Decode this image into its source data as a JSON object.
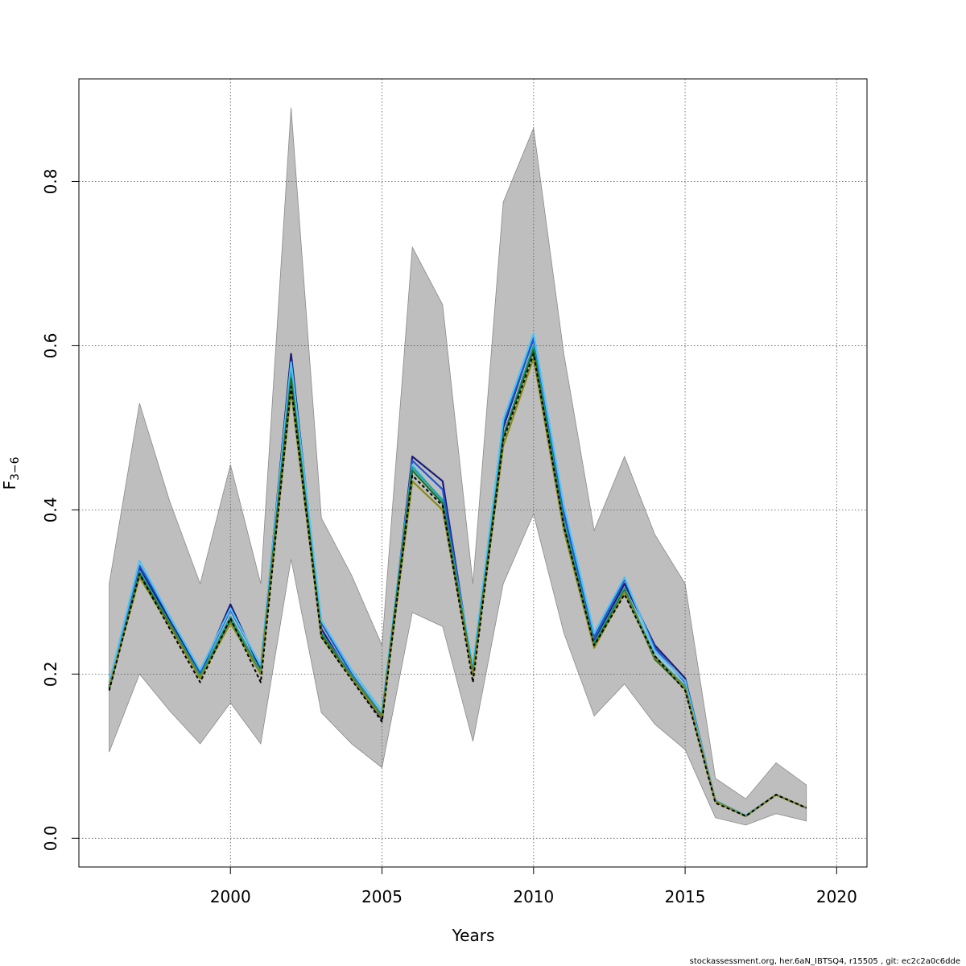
{
  "chart_data": {
    "type": "line",
    "xlabel": "Years",
    "ylabel": {
      "main": "F",
      "subscript": "3−6"
    },
    "xlim": [
      1995,
      2021
    ],
    "ylim": [
      -0.035,
      0.925
    ],
    "x_ticks": [
      2000,
      2005,
      2010,
      2015,
      2020
    ],
    "x_tick_labels": [
      "2000",
      "2005",
      "2010",
      "2015",
      "2020"
    ],
    "y_ticks": [
      0.0,
      0.2,
      0.4,
      0.6,
      0.8
    ],
    "y_tick_labels": [
      "0.0",
      "0.2",
      "0.4",
      "0.6",
      "0.8"
    ],
    "grid": true,
    "band": {
      "x": [
        1996,
        1997,
        1998,
        1999,
        2000,
        2001,
        2002,
        2003,
        2004,
        2005,
        2006,
        2007,
        2008,
        2009,
        2010,
        2011,
        2012,
        2013,
        2014,
        2015,
        2016,
        2017,
        2018,
        2019
      ],
      "upper": [
        0.31,
        0.53,
        0.41,
        0.31,
        0.455,
        0.31,
        0.89,
        0.39,
        0.32,
        0.235,
        0.72,
        0.65,
        0.31,
        0.775,
        0.865,
        0.59,
        0.375,
        0.465,
        0.37,
        0.31,
        0.073,
        0.048,
        0.092,
        0.065
      ],
      "lower": [
        0.105,
        0.2,
        0.155,
        0.115,
        0.165,
        0.115,
        0.34,
        0.153,
        0.115,
        0.086,
        0.275,
        0.258,
        0.118,
        0.31,
        0.395,
        0.25,
        0.149,
        0.188,
        0.139,
        0.108,
        0.025,
        0.016,
        0.03,
        0.021
      ],
      "color": "#bebebe"
    },
    "x": [
      1996,
      1997,
      1998,
      1999,
      2000,
      2001,
      2002,
      2003,
      2004,
      2005,
      2006,
      2007,
      2008,
      2009,
      2010,
      2011,
      2012,
      2013,
      2014,
      2015,
      2016,
      2017,
      2018,
      2019
    ],
    "series": [
      {
        "color": "#1b1b7a",
        "values": [
          0.185,
          0.33,
          0.265,
          0.2,
          0.285,
          0.205,
          0.59,
          0.255,
          0.195,
          0.145,
          0.465,
          0.435,
          0.2,
          0.5,
          0.61,
          0.4,
          0.24,
          0.31,
          0.235,
          0.195,
          0.045,
          0.027,
          0.053,
          0.037
        ]
      },
      {
        "color": "#2255cc",
        "values": [
          0.186,
          0.332,
          0.27,
          0.203,
          0.278,
          0.21,
          0.575,
          0.262,
          0.2,
          0.15,
          0.46,
          0.425,
          0.205,
          0.505,
          0.608,
          0.395,
          0.245,
          0.315,
          0.232,
          0.19,
          0.046,
          0.027,
          0.053,
          0.037
        ]
      },
      {
        "color": "#4fc3f7",
        "values": [
          0.19,
          0.338,
          0.27,
          0.205,
          0.28,
          0.21,
          0.58,
          0.265,
          0.205,
          0.155,
          0.455,
          0.41,
          0.21,
          0.51,
          0.615,
          0.405,
          0.25,
          0.318,
          0.228,
          0.192,
          0.046,
          0.028,
          0.053,
          0.037
        ]
      },
      {
        "color": "#1aa398",
        "values": [
          0.183,
          0.325,
          0.262,
          0.198,
          0.27,
          0.203,
          0.565,
          0.25,
          0.198,
          0.15,
          0.452,
          0.412,
          0.202,
          0.49,
          0.6,
          0.385,
          0.238,
          0.305,
          0.222,
          0.185,
          0.045,
          0.027,
          0.053,
          0.037
        ]
      },
      {
        "color": "#1e6e2a",
        "values": [
          0.182,
          0.322,
          0.26,
          0.195,
          0.265,
          0.2,
          0.56,
          0.248,
          0.196,
          0.148,
          0.448,
          0.408,
          0.2,
          0.488,
          0.595,
          0.38,
          0.235,
          0.302,
          0.218,
          0.182,
          0.045,
          0.027,
          0.053,
          0.037
        ]
      },
      {
        "color": "#8a8a1a",
        "values": [
          0.185,
          0.318,
          0.258,
          0.195,
          0.262,
          0.2,
          0.545,
          0.245,
          0.195,
          0.147,
          0.435,
          0.4,
          0.198,
          0.478,
          0.585,
          0.375,
          0.232,
          0.3,
          0.22,
          0.183,
          0.045,
          0.027,
          0.053,
          0.037
        ]
      },
      {
        "color": "#000000",
        "dashed": true,
        "values": [
          0.18,
          0.322,
          0.255,
          0.19,
          0.268,
          0.19,
          0.55,
          0.245,
          0.193,
          0.142,
          0.442,
          0.405,
          0.19,
          0.485,
          0.59,
          0.38,
          0.235,
          0.297,
          0.222,
          0.18,
          0.043,
          0.027,
          0.053,
          0.037
        ]
      }
    ]
  },
  "footer": {
    "credit": "stockassessment.org, her.6aN_IBTSQ4, r15505 , git: ec2c2a0c6dde"
  }
}
